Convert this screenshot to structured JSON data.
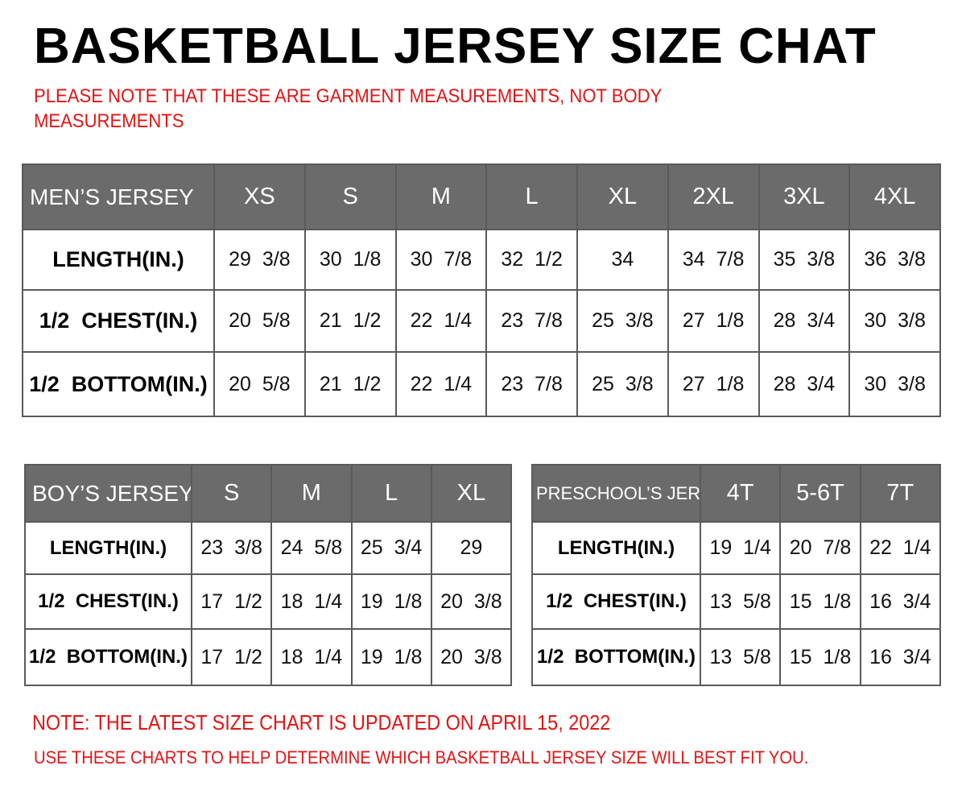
{
  "title": "BASKETBALL JERSEY SIZE CHAT",
  "note": "PLEASE NOTE THAT THESE ARE GARMENT MEASUREMENTS, NOT BODY MEASUREMENTS",
  "colors": {
    "header_bg": "#6b6b6b",
    "accent_red": "#e31414"
  },
  "tables": {
    "men": {
      "header": [
        "MEN’S JERSEY",
        "XS",
        "S",
        "M",
        "L",
        "XL",
        "2XL",
        "3XL",
        "4XL"
      ],
      "rows": [
        [
          "LENGTH(IN.)",
          "29  3/8",
          "30  1/8",
          "30  7/8",
          "32  1/2",
          "34",
          "34  7/8",
          "35  3/8",
          "36  3/8"
        ],
        [
          "1/2  CHEST(IN.)",
          "20  5/8",
          "21  1/2",
          "22  1/4",
          "23  7/8",
          "25  3/8",
          "27  1/8",
          "28  3/4",
          "30  3/8"
        ],
        [
          "1/2  BOTTOM(IN.)",
          "20  5/8",
          "21  1/2",
          "22  1/4",
          "23  7/8",
          "25  3/8",
          "27  1/8",
          "28  3/4",
          "30  3/8"
        ]
      ]
    },
    "boy": {
      "header": [
        "BOY’S JERSEY",
        "S",
        "M",
        "L",
        "XL"
      ],
      "rows": [
        [
          "LENGTH(IN.)",
          "23  3/8",
          "24  5/8",
          "25  3/4",
          "29"
        ],
        [
          "1/2  CHEST(IN.)",
          "17  1/2",
          "18  1/4",
          "19  1/8",
          "20  3/8"
        ],
        [
          "1/2  BOTTOM(IN.)",
          "17  1/2",
          "18  1/4",
          "19  1/8",
          "20  3/8"
        ]
      ]
    },
    "pre": {
      "header": [
        "PRESCHOOL’S JERSEY",
        "4T",
        "5-6T",
        "7T"
      ],
      "rows": [
        [
          "LENGTH(IN.)",
          "19  1/4",
          "20  7/8",
          "22  1/4"
        ],
        [
          "1/2  CHEST(IN.)",
          "13  5/8",
          "15  1/8",
          "16  3/4"
        ],
        [
          "1/2  BOTTOM(IN.)",
          "13  5/8",
          "15  1/8",
          "16  3/4"
        ]
      ]
    }
  },
  "footer": {
    "line1": "NOTE: THE LATEST SIZE CHART IS UPDATED ON APRIL 15, 2022",
    "line2": "USE THESE CHARTS TO HELP DETERMINE WHICH  BASKETBALL JERSEY  SIZE WILL BEST FIT YOU."
  }
}
